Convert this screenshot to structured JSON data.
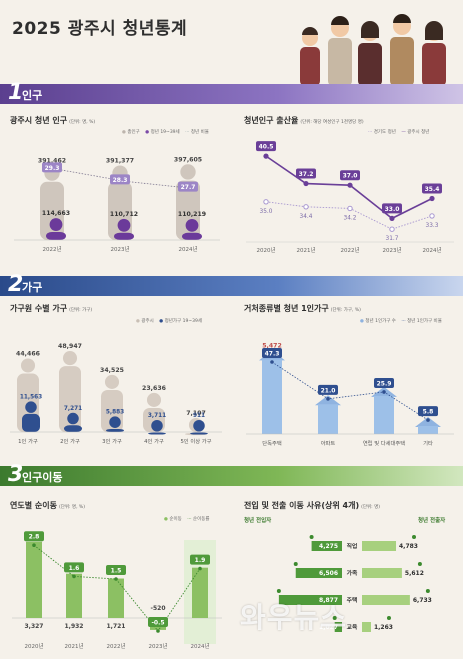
{
  "title": "2025 광주시 청년통계",
  "sections": [
    {
      "num": "1",
      "label": "인구"
    },
    {
      "num": "2",
      "label": "가구"
    },
    {
      "num": "3",
      "label": "인구이동"
    }
  ],
  "watermark": "와우뉴스",
  "chart_data": [
    {
      "type": "bar",
      "title": "광주시 청년 인구",
      "unit": "(단위: 명, %)",
      "legend": [
        "총인구",
        "청년 19~39세",
        "청년 비율"
      ],
      "categories": [
        "2022년",
        "2023년",
        "2024년"
      ],
      "series": [
        {
          "name": "총인구",
          "values": [
            391462,
            391377,
            397605
          ]
        },
        {
          "name": "청년 19~39세",
          "values": [
            114663,
            110712,
            110219
          ]
        },
        {
          "name": "청년 비율",
          "values": [
            29.3,
            28.3,
            27.7
          ]
        }
      ],
      "labels": {
        "total": [
          "391,462",
          "391,377",
          "397,605"
        ],
        "youth": [
          "114,663",
          "110,712",
          "110,219"
        ],
        "ratio": [
          "29.3",
          "28.3",
          "27.7"
        ]
      }
    },
    {
      "type": "line",
      "title": "청년인구 출산율",
      "unit": "(단위: 해당 여성인구 1천명당 명)",
      "legend": [
        "경기도 청년",
        "광주시 청년"
      ],
      "categories": [
        "2020년",
        "2021년",
        "2022년",
        "2023년",
        "2024년"
      ],
      "series": [
        {
          "name": "경기도 청년",
          "values": [
            35.0,
            34.4,
            34.2,
            31.7,
            33.3
          ]
        },
        {
          "name": "광주시 청년",
          "values": [
            40.5,
            37.2,
            37.0,
            33.0,
            35.4
          ]
        }
      ],
      "labels": {
        "gyeonggi": [
          "35.0",
          "34.4",
          "34.2",
          "31.7",
          "33.3"
        ],
        "gwangju": [
          "40.5",
          "37.2",
          "37.0",
          "33.0",
          "35.4"
        ]
      }
    },
    {
      "type": "bar",
      "title": "가구원 수별 가구",
      "unit": "(단위: 가구)",
      "legend": [
        "광주시",
        "청년가구 19~39세"
      ],
      "categories": [
        "1인 가구",
        "2인 가구",
        "3인 가구",
        "4인 가구",
        "5인 이상 가구"
      ],
      "series": [
        {
          "name": "광주시",
          "values": [
            44466,
            48947,
            34525,
            23636,
            7107
          ]
        },
        {
          "name": "청년가구 19~39세",
          "values": [
            11563,
            7271,
            5883,
            3711,
            911
          ]
        }
      ],
      "labels": {
        "total": [
          "44,466",
          "48,947",
          "34,525",
          "23,636",
          "7,107"
        ],
        "youth": [
          "11,563",
          "7,271",
          "5,883",
          "3,711",
          "911"
        ]
      }
    },
    {
      "type": "bar",
      "title": "거처종류별 청년 1인가구",
      "unit": "(단위: 가구, %)",
      "legend": [
        "청년 1인가구 수",
        "청년 1인가구 비율"
      ],
      "categories": [
        "단독주택",
        "아파트",
        "연립 및 다세대주택",
        "기타"
      ],
      "series": [
        {
          "name": "청년 1인가구 수",
          "values": [
            5472,
            2427,
            2995,
            669
          ]
        },
        {
          "name": "청년 1인가구 비율",
          "values": [
            47.3,
            21.0,
            25.9,
            5.8
          ]
        }
      ],
      "labels": {
        "count": [
          "5,472",
          "2,427",
          "2,995",
          "669"
        ],
        "ratio": [
          "47.3",
          "21.0",
          "25.9",
          "5.8"
        ]
      }
    },
    {
      "type": "bar",
      "title": "연도별 순이동",
      "unit": "(단위: 명, %)",
      "legend": [
        "순이동",
        "순이동률"
      ],
      "categories": [
        "2020년",
        "2021년",
        "2022년",
        "2023년",
        "2024년"
      ],
      "series": [
        {
          "name": "순이동",
          "values": [
            3327,
            1932,
            1721,
            -520,
            2193
          ]
        },
        {
          "name": "순이동률",
          "values": [
            2.8,
            1.6,
            1.5,
            -0.5,
            1.9
          ]
        }
      ],
      "labels": {
        "net": [
          "3,327",
          "1,932",
          "1,721",
          "-520",
          ""
        ],
        "rate": [
          "2.8",
          "1.6",
          "1.5",
          "-0.5",
          "1.9"
        ]
      }
    },
    {
      "type": "bar",
      "title": "전입 및 전출 이동 사유(상위 4개)",
      "unit": "(단위: 명)",
      "legend": [
        "청년 전입자",
        "청년 전출자"
      ],
      "categories": [
        "직업",
        "가족",
        "주택",
        "교육"
      ],
      "series": [
        {
          "name": "청년 전입자",
          "values": [
            4275,
            6506,
            8877,
            1027
          ]
        },
        {
          "name": "청년 전출자",
          "values": [
            4783,
            5612,
            6733,
            1263
          ]
        }
      ],
      "labels": {
        "in": [
          "4,275",
          "6,506",
          "8,877",
          "1,027"
        ],
        "out": [
          "4,783",
          "5,612",
          "6,733",
          "1,263"
        ]
      }
    }
  ]
}
